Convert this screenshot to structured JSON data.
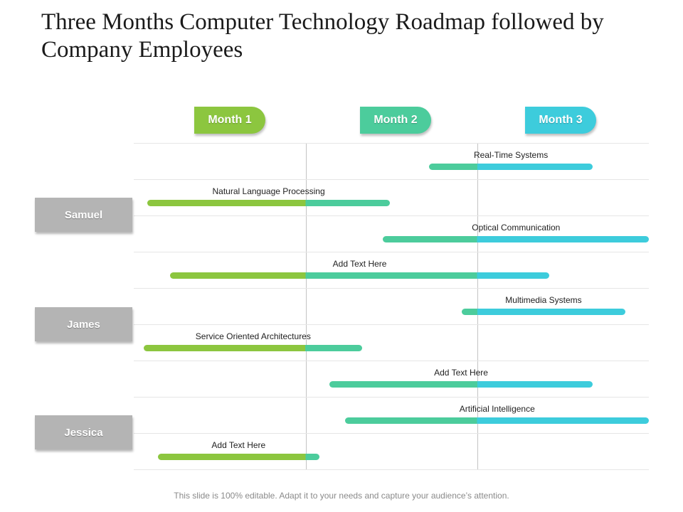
{
  "title": "Three Months Computer Technology Roadmap followed by Company Employees",
  "months": [
    "Month 1",
    "Month 2",
    "Month 3"
  ],
  "people": [
    "Samuel",
    "James",
    "Jessica"
  ],
  "colors": {
    "month1": "#8cc63f",
    "month2": "#4ccc9c",
    "month3": "#3dccdc",
    "person": "#b4b4b4"
  },
  "tasks": [
    {
      "label": "Real-Time Systems",
      "start": 1.72,
      "end": 2.67
    },
    {
      "label": "Natural Language Processing",
      "start": 0.08,
      "end": 1.49
    },
    {
      "label": "Optical Communication",
      "start": 1.45,
      "end": 3.0
    },
    {
      "label": "Add Text Here",
      "start": 0.21,
      "end": 2.42
    },
    {
      "label": "Multimedia Systems",
      "start": 1.91,
      "end": 2.86
    },
    {
      "label": "Service Oriented Architectures",
      "start": 0.06,
      "end": 1.33
    },
    {
      "label": "Add Text Here",
      "start": 1.14,
      "end": 2.67
    },
    {
      "label": "Artificial Intelligence",
      "start": 1.23,
      "end": 3.0
    },
    {
      "label": "Add Text Here",
      "start": 0.14,
      "end": 1.08
    }
  ],
  "footer": "This slide is 100% editable. Adapt it to your needs and capture your audience’s attention."
}
